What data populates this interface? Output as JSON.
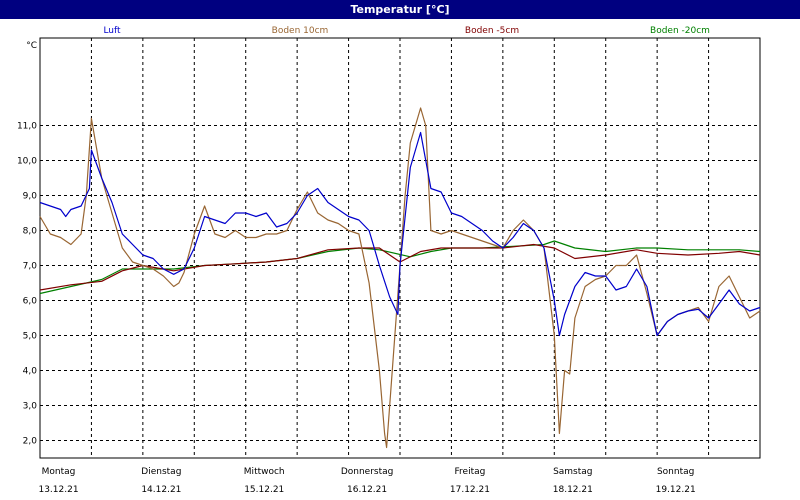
{
  "window": {
    "title": "Temperatur [°C]"
  },
  "chart_data": {
    "type": "line",
    "title": "Temperatur [°C]",
    "ylabel": "°C",
    "ylim": [
      1.5,
      13.5
    ],
    "yticks": [
      2.0,
      3.0,
      4.0,
      5.0,
      6.0,
      7.0,
      8.0,
      9.0,
      10.0,
      11.0
    ],
    "ytick_labels": [
      "2,0",
      "3,0",
      "4,0",
      "5,0",
      "6,0",
      "7,0",
      "8,0",
      "9,0",
      "10,0",
      "11,0"
    ],
    "xlim": [
      0,
      7
    ],
    "xticks": [
      {
        "pos": 0,
        "day": "Montag",
        "date": "13.12.21"
      },
      {
        "pos": 1,
        "day": "Dienstag",
        "date": "14.12.21"
      },
      {
        "pos": 2,
        "day": "Mittwoch",
        "date": "15.12.21"
      },
      {
        "pos": 3,
        "day": "Donnerstag",
        "date": "16.12.21"
      },
      {
        "pos": 4,
        "day": "Freitag",
        "date": "17.12.21"
      },
      {
        "pos": 5,
        "day": "Samstag",
        "date": "18.12.21"
      },
      {
        "pos": 6,
        "day": "Sonntag",
        "date": "19.12.21"
      }
    ],
    "grid": true,
    "legend": "top",
    "series": [
      {
        "name": "Luft",
        "color": "#0000cc",
        "points": [
          [
            0.0,
            8.8
          ],
          [
            0.1,
            8.7
          ],
          [
            0.2,
            8.6
          ],
          [
            0.25,
            8.4
          ],
          [
            0.3,
            8.6
          ],
          [
            0.4,
            8.7
          ],
          [
            0.48,
            9.2
          ],
          [
            0.5,
            10.3
          ],
          [
            0.6,
            9.5
          ],
          [
            0.7,
            8.8
          ],
          [
            0.8,
            7.9
          ],
          [
            0.9,
            7.6
          ],
          [
            1.0,
            7.3
          ],
          [
            1.1,
            7.2
          ],
          [
            1.2,
            6.9
          ],
          [
            1.3,
            6.75
          ],
          [
            1.4,
            6.9
          ],
          [
            1.5,
            7.5
          ],
          [
            1.6,
            8.4
          ],
          [
            1.7,
            8.3
          ],
          [
            1.8,
            8.2
          ],
          [
            1.9,
            8.5
          ],
          [
            2.0,
            8.5
          ],
          [
            2.1,
            8.4
          ],
          [
            2.2,
            8.5
          ],
          [
            2.3,
            8.1
          ],
          [
            2.4,
            8.2
          ],
          [
            2.5,
            8.5
          ],
          [
            2.6,
            9.0
          ],
          [
            2.7,
            9.2
          ],
          [
            2.8,
            8.8
          ],
          [
            2.9,
            8.6
          ],
          [
            3.0,
            8.4
          ],
          [
            3.1,
            8.3
          ],
          [
            3.2,
            8.0
          ],
          [
            3.3,
            7.0
          ],
          [
            3.4,
            6.1
          ],
          [
            3.48,
            5.6
          ],
          [
            3.5,
            7.0
          ],
          [
            3.6,
            9.8
          ],
          [
            3.7,
            10.8
          ],
          [
            3.8,
            9.2
          ],
          [
            3.9,
            9.1
          ],
          [
            4.0,
            8.5
          ],
          [
            4.1,
            8.4
          ],
          [
            4.2,
            8.2
          ],
          [
            4.3,
            8.0
          ],
          [
            4.4,
            7.7
          ],
          [
            4.5,
            7.5
          ],
          [
            4.6,
            7.8
          ],
          [
            4.7,
            8.2
          ],
          [
            4.8,
            8.0
          ],
          [
            4.9,
            7.5
          ],
          [
            5.0,
            6.0
          ],
          [
            5.05,
            5.0
          ],
          [
            5.1,
            5.6
          ],
          [
            5.2,
            6.4
          ],
          [
            5.3,
            6.8
          ],
          [
            5.4,
            6.7
          ],
          [
            5.5,
            6.7
          ],
          [
            5.6,
            6.3
          ],
          [
            5.7,
            6.4
          ],
          [
            5.8,
            6.9
          ],
          [
            5.9,
            6.4
          ],
          [
            6.0,
            5.0
          ],
          [
            6.1,
            5.4
          ],
          [
            6.2,
            5.6
          ],
          [
            6.3,
            5.7
          ],
          [
            6.4,
            5.75
          ],
          [
            6.5,
            5.5
          ],
          [
            6.6,
            5.9
          ],
          [
            6.7,
            6.3
          ],
          [
            6.8,
            5.9
          ],
          [
            6.9,
            5.7
          ],
          [
            7.0,
            5.8
          ]
        ]
      },
      {
        "name": "Boden 10cm",
        "color": "#996633",
        "points": [
          [
            0.0,
            8.4
          ],
          [
            0.1,
            7.9
          ],
          [
            0.2,
            7.8
          ],
          [
            0.3,
            7.6
          ],
          [
            0.4,
            7.9
          ],
          [
            0.45,
            9.0
          ],
          [
            0.5,
            11.2
          ],
          [
            0.6,
            9.5
          ],
          [
            0.7,
            8.5
          ],
          [
            0.8,
            7.5
          ],
          [
            0.9,
            7.1
          ],
          [
            1.0,
            7.0
          ],
          [
            1.1,
            6.9
          ],
          [
            1.2,
            6.7
          ],
          [
            1.3,
            6.4
          ],
          [
            1.35,
            6.5
          ],
          [
            1.4,
            6.8
          ],
          [
            1.5,
            7.9
          ],
          [
            1.6,
            8.7
          ],
          [
            1.7,
            7.9
          ],
          [
            1.8,
            7.8
          ],
          [
            1.9,
            8.0
          ],
          [
            2.0,
            7.8
          ],
          [
            2.1,
            7.8
          ],
          [
            2.2,
            7.9
          ],
          [
            2.3,
            7.9
          ],
          [
            2.4,
            8.0
          ],
          [
            2.5,
            8.6
          ],
          [
            2.6,
            9.1
          ],
          [
            2.7,
            8.5
          ],
          [
            2.8,
            8.3
          ],
          [
            2.9,
            8.2
          ],
          [
            3.0,
            8.0
          ],
          [
            3.1,
            7.9
          ],
          [
            3.2,
            6.5
          ],
          [
            3.3,
            4.0
          ],
          [
            3.35,
            2.2
          ],
          [
            3.37,
            1.8
          ],
          [
            3.4,
            3.0
          ],
          [
            3.5,
            7.0
          ],
          [
            3.55,
            9.0
          ],
          [
            3.6,
            10.5
          ],
          [
            3.7,
            11.5
          ],
          [
            3.75,
            11.0
          ],
          [
            3.8,
            8.0
          ],
          [
            3.9,
            7.9
          ],
          [
            4.0,
            8.0
          ],
          [
            4.1,
            7.9
          ],
          [
            4.2,
            7.8
          ],
          [
            4.3,
            7.7
          ],
          [
            4.4,
            7.6
          ],
          [
            4.5,
            7.5
          ],
          [
            4.6,
            8.0
          ],
          [
            4.7,
            8.3
          ],
          [
            4.8,
            8.0
          ],
          [
            4.9,
            7.5
          ],
          [
            5.0,
            5.0
          ],
          [
            5.05,
            2.2
          ],
          [
            5.1,
            4.0
          ],
          [
            5.15,
            3.9
          ],
          [
            5.2,
            5.5
          ],
          [
            5.3,
            6.4
          ],
          [
            5.4,
            6.6
          ],
          [
            5.5,
            6.7
          ],
          [
            5.6,
            7.0
          ],
          [
            5.7,
            7.0
          ],
          [
            5.8,
            7.3
          ],
          [
            5.9,
            6.2
          ],
          [
            6.0,
            5.0
          ],
          [
            6.1,
            5.4
          ],
          [
            6.2,
            5.6
          ],
          [
            6.3,
            5.7
          ],
          [
            6.4,
            5.8
          ],
          [
            6.5,
            5.4
          ],
          [
            6.6,
            6.4
          ],
          [
            6.7,
            6.7
          ],
          [
            6.8,
            6.1
          ],
          [
            6.9,
            5.5
          ],
          [
            7.0,
            5.7
          ]
        ]
      },
      {
        "name": "Boden -5cm",
        "color": "#800000",
        "points": [
          [
            0.0,
            6.3
          ],
          [
            0.3,
            6.45
          ],
          [
            0.6,
            6.55
          ],
          [
            0.8,
            6.85
          ],
          [
            1.0,
            7.0
          ],
          [
            1.3,
            6.85
          ],
          [
            1.6,
            7.0
          ],
          [
            1.9,
            7.05
          ],
          [
            2.2,
            7.1
          ],
          [
            2.5,
            7.2
          ],
          [
            2.8,
            7.45
          ],
          [
            3.1,
            7.5
          ],
          [
            3.3,
            7.5
          ],
          [
            3.5,
            7.1
          ],
          [
            3.7,
            7.4
          ],
          [
            3.9,
            7.5
          ],
          [
            4.2,
            7.5
          ],
          [
            4.5,
            7.5
          ],
          [
            4.8,
            7.6
          ],
          [
            5.0,
            7.5
          ],
          [
            5.2,
            7.2
          ],
          [
            5.5,
            7.3
          ],
          [
            5.8,
            7.45
          ],
          [
            6.0,
            7.35
          ],
          [
            6.3,
            7.3
          ],
          [
            6.6,
            7.35
          ],
          [
            6.8,
            7.4
          ],
          [
            7.0,
            7.3
          ]
        ]
      },
      {
        "name": "Boden -20cm",
        "color": "#008000",
        "points": [
          [
            0.0,
            6.2
          ],
          [
            0.3,
            6.4
          ],
          [
            0.6,
            6.6
          ],
          [
            0.8,
            6.9
          ],
          [
            1.0,
            6.9
          ],
          [
            1.3,
            6.9
          ],
          [
            1.6,
            7.0
          ],
          [
            1.9,
            7.05
          ],
          [
            2.2,
            7.1
          ],
          [
            2.5,
            7.2
          ],
          [
            2.8,
            7.4
          ],
          [
            3.1,
            7.5
          ],
          [
            3.3,
            7.45
          ],
          [
            3.6,
            7.25
          ],
          [
            3.8,
            7.4
          ],
          [
            4.0,
            7.5
          ],
          [
            4.3,
            7.5
          ],
          [
            4.6,
            7.55
          ],
          [
            4.9,
            7.6
          ],
          [
            5.0,
            7.7
          ],
          [
            5.2,
            7.5
          ],
          [
            5.5,
            7.4
          ],
          [
            5.8,
            7.5
          ],
          [
            6.0,
            7.5
          ],
          [
            6.3,
            7.45
          ],
          [
            6.6,
            7.45
          ],
          [
            6.8,
            7.45
          ],
          [
            7.0,
            7.4
          ]
        ]
      }
    ]
  }
}
